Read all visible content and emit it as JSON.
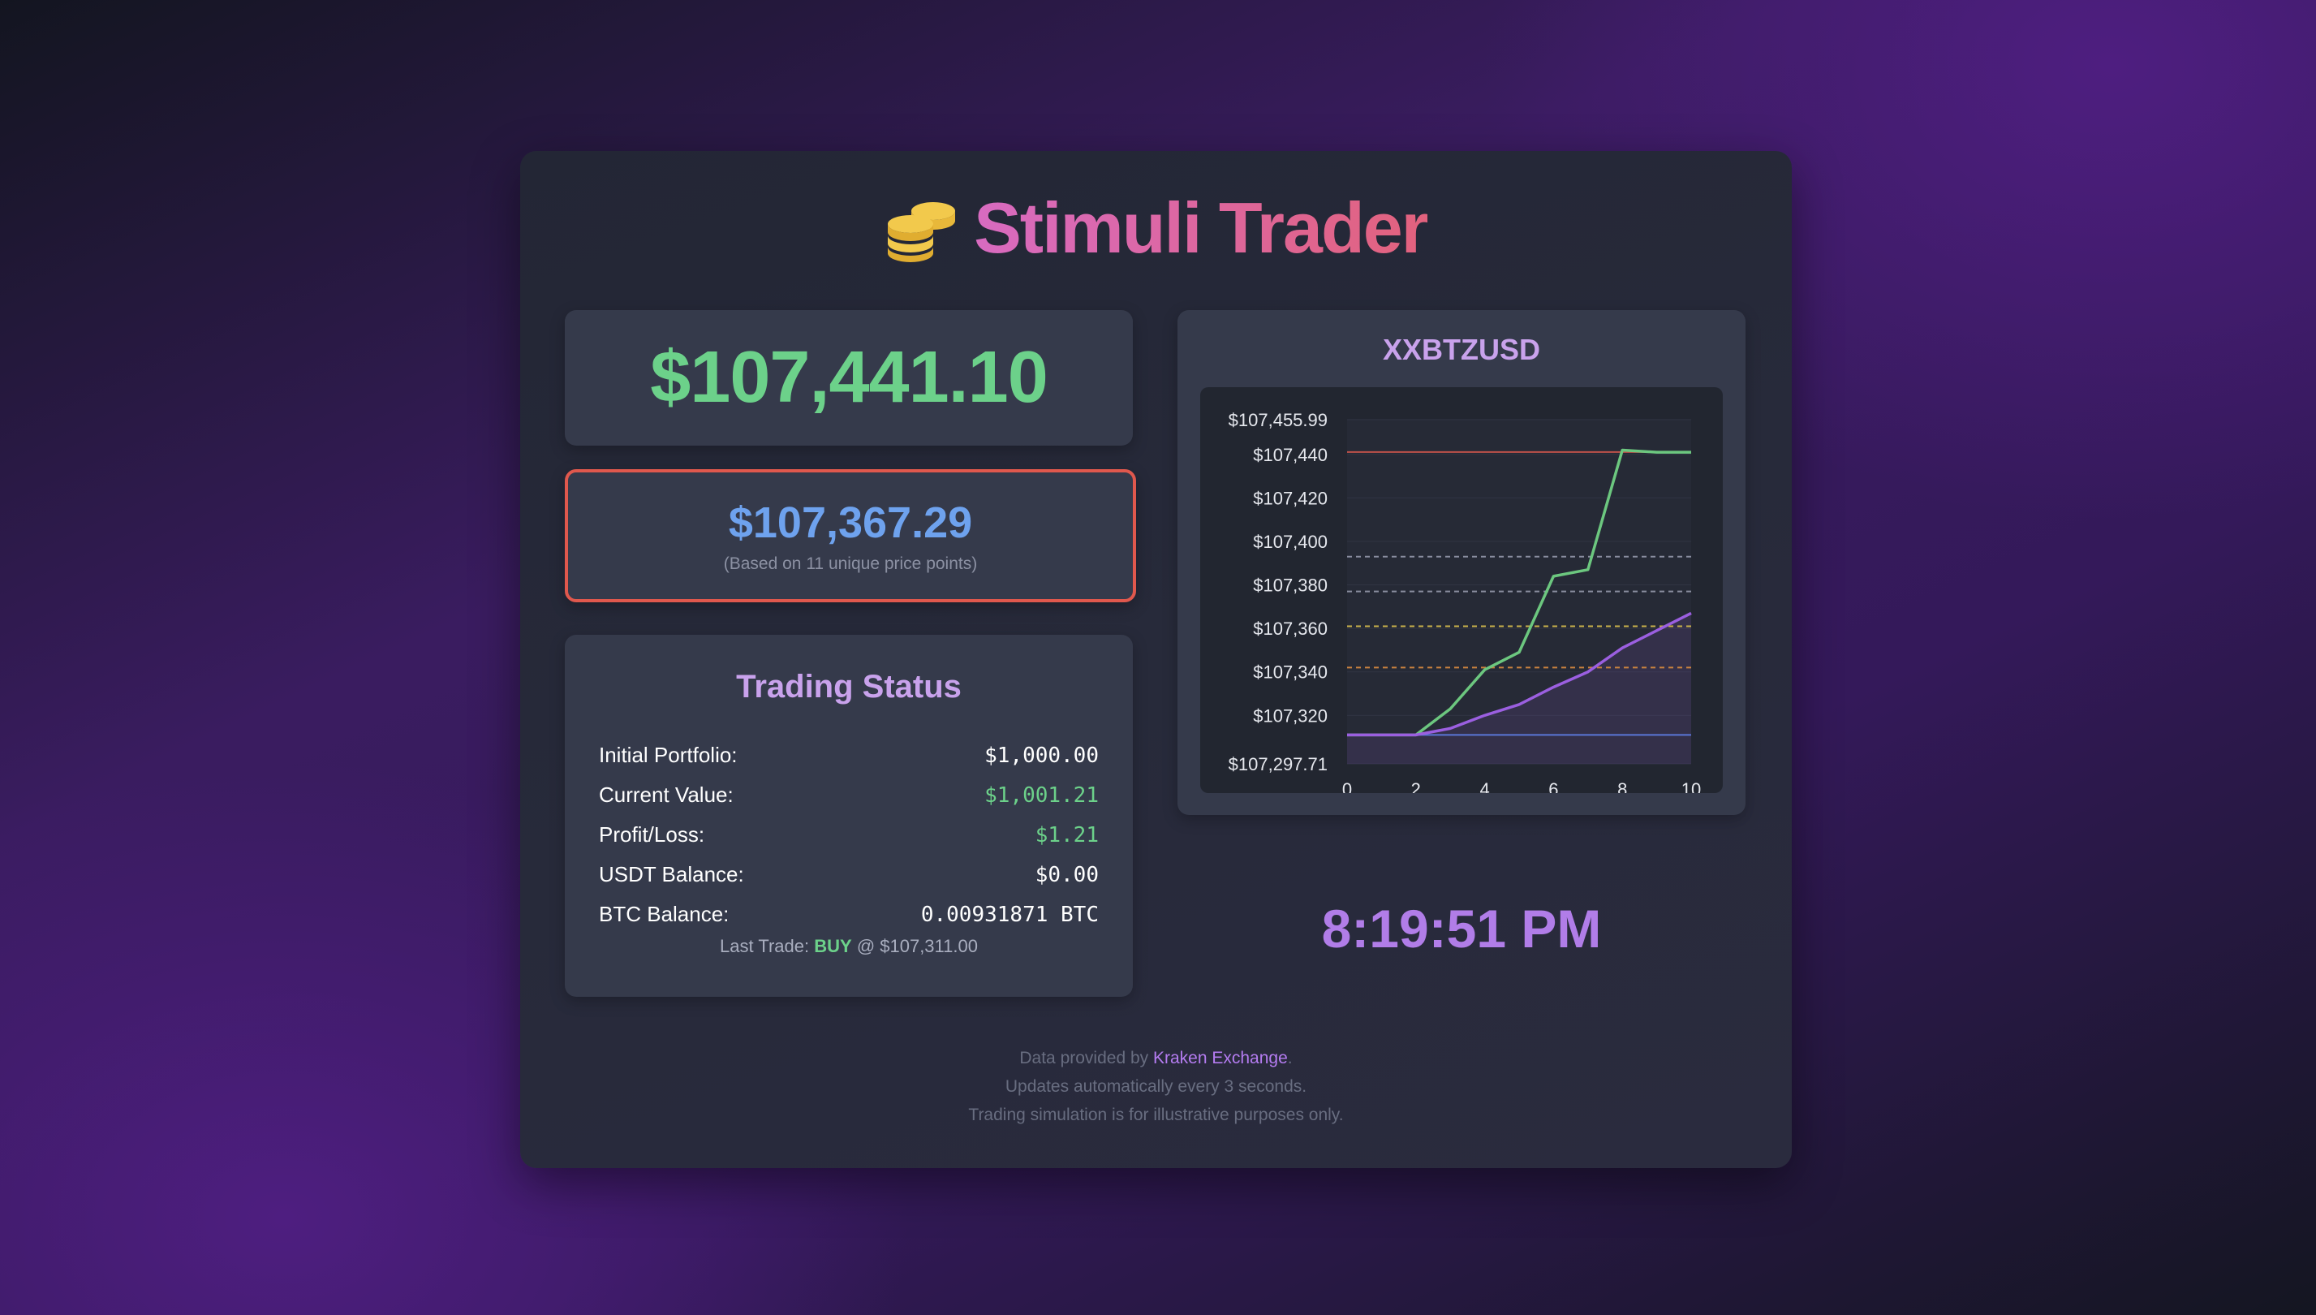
{
  "app": {
    "title": "Stimuli Trader",
    "icon": "coins-icon"
  },
  "price": {
    "current": "$107,441.10"
  },
  "average": {
    "value": "$107,367.29",
    "note": "(Based on 11 unique price points)"
  },
  "trading_status": {
    "title": "Trading Status",
    "rows": [
      {
        "label": "Initial Portfolio:",
        "value": "$1,000.00",
        "positive": false
      },
      {
        "label": "Current Value:",
        "value": "$1,001.21",
        "positive": true
      },
      {
        "label": "Profit/Loss:",
        "value": "$1.21",
        "positive": true
      },
      {
        "label": "USDT Balance:",
        "value": "$0.00",
        "positive": false
      },
      {
        "label": "BTC Balance:",
        "value": "0.00931871 BTC",
        "positive": false
      }
    ],
    "last_trade": {
      "prefix": "Last Trade:",
      "side": "BUY",
      "suffix": "@ $107,311.00"
    }
  },
  "chart_data": {
    "type": "line",
    "title": "XXBTZUSD",
    "x": [
      0,
      1,
      2,
      3,
      4,
      5,
      6,
      7,
      8,
      9,
      10
    ],
    "xticks": [
      0,
      2,
      4,
      6,
      8,
      10
    ],
    "xlim": [
      0,
      10
    ],
    "ylim": [
      107297.71,
      107455.99
    ],
    "yticks": [
      107297.71,
      107320,
      107340,
      107360,
      107380,
      107400,
      107420,
      107440,
      107455.99
    ],
    "ytick_labels": [
      "$107,297.71",
      "$107,320",
      "$107,340",
      "$107,360",
      "$107,380",
      "$107,400",
      "$107,420",
      "$107,440",
      "$107,455.99"
    ],
    "grid": true,
    "series": [
      {
        "color": "#6cc77f",
        "values": [
          107311,
          107311,
          107311,
          107323,
          107341,
          107349,
          107384,
          107387,
          107442,
          107441,
          107441
        ],
        "fill": false
      },
      {
        "color": "#9b5fe0",
        "values": [
          107311,
          107311,
          107311,
          107314,
          107320,
          107325,
          107333,
          107340,
          107351,
          107359,
          107367
        ],
        "fill": true
      }
    ],
    "reference_lines": [
      {
        "value": 107441.1,
        "color": "#c0524a",
        "style": "solid"
      },
      {
        "value": 107393,
        "color": "#8a8ea0",
        "style": "dashed"
      },
      {
        "value": 107377,
        "color": "#8a8ea0",
        "style": "dashed"
      },
      {
        "value": 107361,
        "color": "#c9b24a",
        "style": "dashed"
      },
      {
        "value": 107342,
        "color": "#c9823f",
        "style": "dashed"
      },
      {
        "value": 107311,
        "color": "#5a76d8",
        "style": "solid"
      }
    ]
  },
  "clock": {
    "time": "8:19:51 PM"
  },
  "footer": {
    "provider_prefix": "Data provided by",
    "provider_link": "Kraken Exchange",
    "provider_suffix": ".",
    "update_note": "Updates automatically every 3 seconds.",
    "disclaimer": "Trading simulation is for illustrative purposes only."
  }
}
